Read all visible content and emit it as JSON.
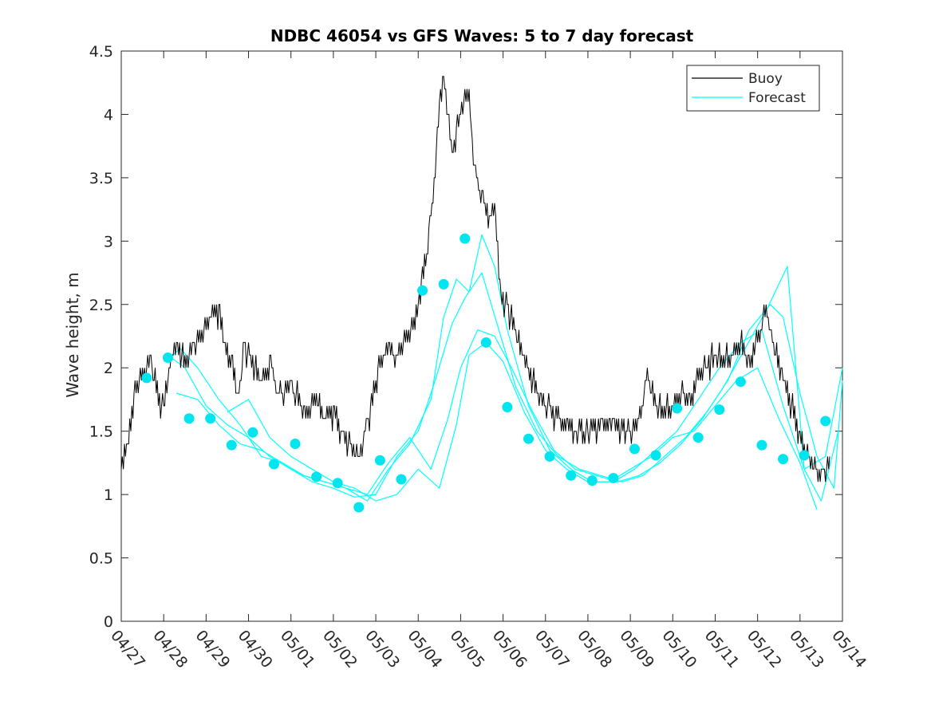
{
  "chart_data": {
    "type": "line",
    "title": "NDBC 46054 vs GFS Waves: 5 to 7 day forecast",
    "xlabel": "",
    "ylabel": "Wave height, m",
    "xlim": [
      0,
      17
    ],
    "ylim": [
      0,
      4.5
    ],
    "grid": false,
    "legend_position": "top-right",
    "x_tick_labels": [
      "04/27",
      "04/28",
      "04/29",
      "04/30",
      "05/01",
      "05/02",
      "05/03",
      "05/04",
      "05/05",
      "05/06",
      "05/07",
      "05/08",
      "05/09",
      "05/10",
      "05/11",
      "05/12",
      "05/13",
      "05/14"
    ],
    "x_tick_values": [
      0,
      1,
      2,
      3,
      4,
      5,
      6,
      7,
      8,
      9,
      10,
      11,
      12,
      13,
      14,
      15,
      16,
      17
    ],
    "y_tick_labels": [
      "0",
      "0.5",
      "1",
      "1.5",
      "2",
      "2.5",
      "3",
      "3.5",
      "4",
      "4.5"
    ],
    "y_tick_values": [
      0,
      0.5,
      1,
      1.5,
      2,
      2.5,
      3,
      3.5,
      4,
      4.5
    ],
    "colors": {
      "buoy": "#000000",
      "forecast": "#00ffff",
      "markers": "#00e5ee"
    },
    "series": [
      {
        "name": "Buoy",
        "x": [
          0,
          0.15,
          0.3,
          0.5,
          0.7,
          0.9,
          1.0,
          1.1,
          1.2,
          1.3,
          1.5,
          1.7,
          1.9,
          2.1,
          2.3,
          2.45,
          2.6,
          2.75,
          2.9,
          3.1,
          3.3,
          3.5,
          3.7,
          4.0,
          4.2,
          4.4,
          4.6,
          4.8,
          5.0,
          5.2,
          5.4,
          5.6,
          5.8,
          6.0,
          6.2,
          6.3,
          6.5,
          6.7,
          6.9,
          7.0,
          7.2,
          7.4,
          7.5,
          7.6,
          7.7,
          7.8,
          8.0,
          8.2,
          8.3,
          8.5,
          8.7,
          8.8,
          8.95,
          9.1,
          9.3,
          9.5,
          9.7,
          9.9,
          10.1,
          10.4,
          10.7,
          11.0,
          11.3,
          11.6,
          11.9,
          12.2,
          12.4,
          12.6,
          12.8,
          13.0,
          13.2,
          13.4,
          13.6,
          13.8,
          14.0,
          14.2,
          14.4,
          14.6,
          14.8,
          15.0,
          15.2,
          15.35,
          15.5,
          15.6,
          15.8,
          16.0,
          16.2,
          16.4,
          16.55,
          16.7
        ],
        "y": [
          1.2,
          1.4,
          1.8,
          1.95,
          2.05,
          1.75,
          1.65,
          1.9,
          2.1,
          2.2,
          2.05,
          2.2,
          2.25,
          2.35,
          2.45,
          2.15,
          2.05,
          1.8,
          2.15,
          2.05,
          1.9,
          2.05,
          1.8,
          1.85,
          1.75,
          1.6,
          1.8,
          1.55,
          1.65,
          1.5,
          1.4,
          1.3,
          1.55,
          1.9,
          2.1,
          2.15,
          2.1,
          2.2,
          2.35,
          2.5,
          2.9,
          3.5,
          4.1,
          4.25,
          4.0,
          3.7,
          4.0,
          4.2,
          3.6,
          3.35,
          3.15,
          3.3,
          2.6,
          2.45,
          2.3,
          2.05,
          1.9,
          1.75,
          1.65,
          1.6,
          1.5,
          1.5,
          1.55,
          1.55,
          1.5,
          1.55,
          1.95,
          1.7,
          1.65,
          1.7,
          1.8,
          1.75,
          1.9,
          2.0,
          2.1,
          2.05,
          2.1,
          2.2,
          2.05,
          2.2,
          2.5,
          2.2,
          2.05,
          1.9,
          1.7,
          1.45,
          1.3,
          1.2,
          1.15,
          1.3
        ]
      },
      {
        "name": "Forecast",
        "lines": [
          {
            "x": [
              1.0,
              1.4,
              1.8,
              2.3,
              2.8,
              3.3,
              3.8,
              4.3,
              4.8,
              5.3,
              5.8,
              6.3,
              6.8,
              7.3,
              7.6,
              7.9,
              8.2,
              8.5,
              8.8,
              9.1,
              9.6,
              10.1,
              10.6,
              11.1,
              11.6,
              12.1,
              12.6,
              13.1,
              13.6,
              14.1,
              14.6,
              15.1,
              15.6,
              16.1,
              16.6,
              17.0
            ],
            "y": [
              2.05,
              2.15,
              2.0,
              1.75,
              1.55,
              1.3,
              1.25,
              1.15,
              1.1,
              1.05,
              0.95,
              1.2,
              1.4,
              1.75,
              2.4,
              2.7,
              2.6,
              3.05,
              2.8,
              2.3,
              1.7,
              1.35,
              1.2,
              1.1,
              1.1,
              1.2,
              1.35,
              1.5,
              1.75,
              2.0,
              2.2,
              2.3,
              1.7,
              1.2,
              1.3,
              2.0
            ]
          },
          {
            "x": [
              1.1,
              1.5,
              2.0,
              2.5,
              3.0,
              3.5,
              4.0,
              4.5,
              5.0,
              5.5,
              6.0,
              6.5,
              7.0,
              7.4,
              7.8,
              8.1,
              8.5,
              8.9,
              9.3,
              9.8,
              10.3,
              10.8,
              11.3,
              11.8,
              12.3,
              12.8,
              13.3,
              13.8,
              14.3,
              14.8,
              15.3,
              15.6,
              16.0,
              16.4,
              16.8,
              17.0
            ],
            "y": [
              2.1,
              2.0,
              1.7,
              1.55,
              1.45,
              1.3,
              1.2,
              1.1,
              1.05,
              0.98,
              1.0,
              1.3,
              1.5,
              1.9,
              2.35,
              2.55,
              2.75,
              2.3,
              1.85,
              1.5,
              1.3,
              1.2,
              1.15,
              1.1,
              1.15,
              1.3,
              1.45,
              1.65,
              1.9,
              2.3,
              2.5,
              2.4,
              1.8,
              1.3,
              1.05,
              1.9
            ]
          },
          {
            "x": [
              1.3,
              1.8,
              2.3,
              2.8,
              3.3,
              3.8,
              4.3,
              4.8,
              5.3,
              5.8,
              6.3,
              6.8,
              7.3,
              7.7,
              8.0,
              8.4,
              8.8,
              9.2,
              9.7,
              10.2,
              10.7,
              11.2,
              11.7,
              12.2,
              12.7,
              13.2,
              13.7,
              14.2,
              14.7,
              15.2,
              15.7,
              16.1,
              16.5,
              16.9
            ],
            "y": [
              1.8,
              1.75,
              1.55,
              1.4,
              1.35,
              1.25,
              1.15,
              1.1,
              1.05,
              1.0,
              1.25,
              1.45,
              1.2,
              1.6,
              2.0,
              2.3,
              2.25,
              2.0,
              1.65,
              1.35,
              1.2,
              1.15,
              1.1,
              1.15,
              1.25,
              1.4,
              1.6,
              1.85,
              2.15,
              2.45,
              2.8,
              1.2,
              0.95,
              1.5
            ]
          },
          {
            "x": [
              2.5,
              3.0,
              3.5,
              4.0,
              4.5,
              5.0,
              5.5,
              6.0,
              6.5,
              7.0,
              7.5,
              7.9,
              8.2,
              8.6,
              9.0,
              9.5,
              10.0,
              10.5,
              11.0,
              11.5,
              12.0,
              12.5,
              13.0,
              13.5,
              14.0,
              14.5,
              15.0,
              15.5,
              16.0,
              16.4
            ],
            "y": [
              1.65,
              1.75,
              1.45,
              1.3,
              1.2,
              1.1,
              1.05,
              0.95,
              1.0,
              1.2,
              1.05,
              1.55,
              2.1,
              2.2,
              2.05,
              1.65,
              1.35,
              1.2,
              1.1,
              1.1,
              1.2,
              1.3,
              1.45,
              1.5,
              1.7,
              1.9,
              2.0,
              1.6,
              1.25,
              0.88
            ]
          }
        ],
        "markers": {
          "x": [
            0.6,
            1.1,
            1.6,
            2.1,
            2.6,
            3.1,
            3.6,
            4.1,
            4.6,
            5.1,
            5.6,
            6.1,
            6.6,
            7.1,
            7.6,
            8.1,
            8.6,
            9.1,
            9.6,
            10.1,
            10.6,
            11.1,
            11.6,
            12.1,
            12.6,
            13.1,
            13.6,
            14.1,
            14.6,
            15.1,
            15.6,
            16.1,
            16.6
          ],
          "y": [
            1.92,
            2.08,
            1.6,
            1.6,
            1.39,
            1.49,
            1.24,
            1.4,
            1.14,
            1.09,
            0.9,
            1.27,
            1.12,
            2.61,
            2.66,
            3.02,
            2.2,
            1.69,
            1.44,
            1.3,
            1.15,
            1.11,
            1.13,
            1.36,
            1.31,
            1.68,
            1.45,
            1.67,
            1.89,
            1.39,
            1.28,
            1.31,
            1.58
          ]
        }
      }
    ]
  }
}
